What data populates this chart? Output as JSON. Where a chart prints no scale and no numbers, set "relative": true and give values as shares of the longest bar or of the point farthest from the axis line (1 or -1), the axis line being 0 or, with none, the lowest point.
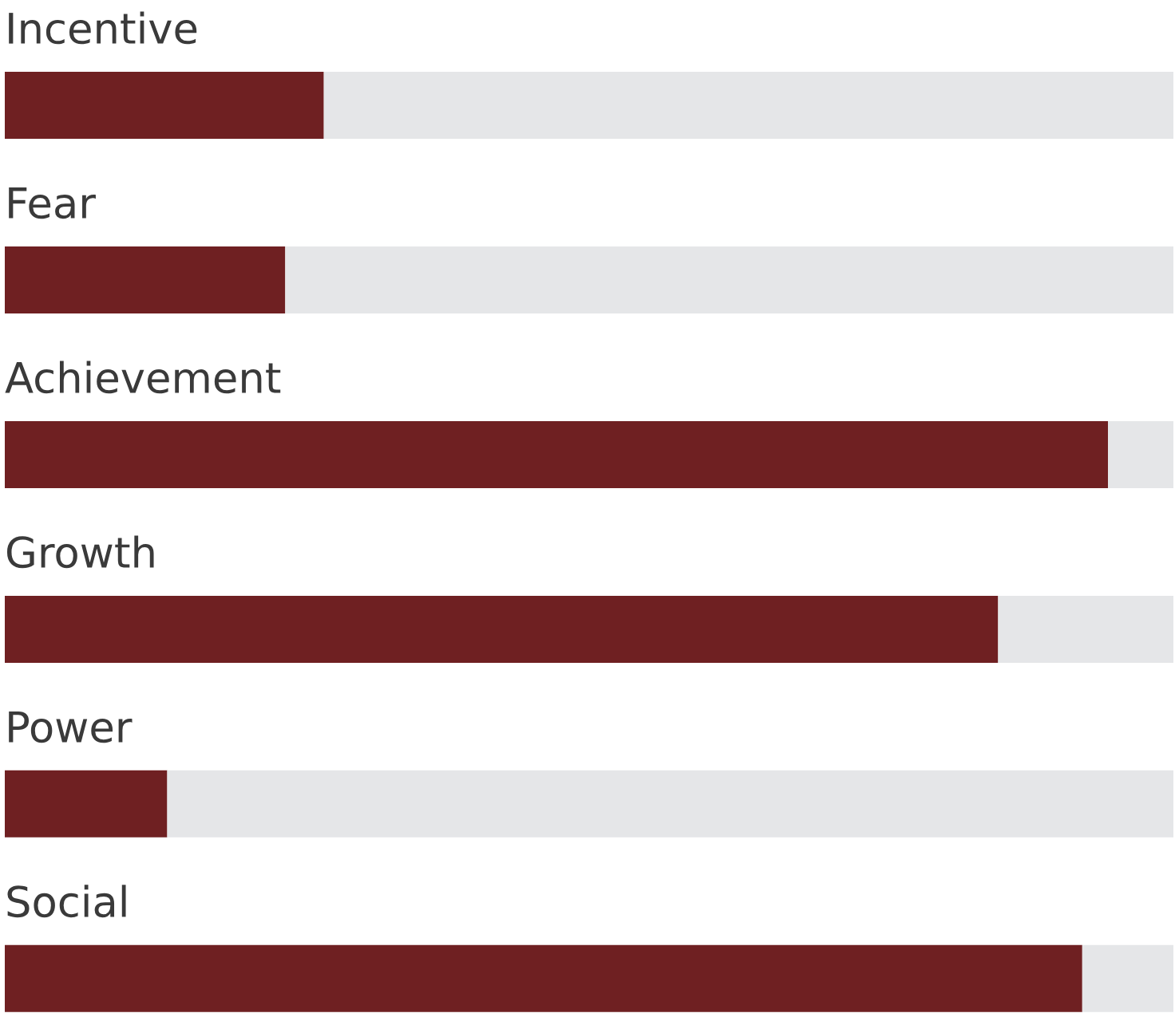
{
  "chart_data": {
    "type": "bar",
    "orientation": "horizontal",
    "stacked": true,
    "relative": true,
    "categories": [
      "Incentive",
      "Fear",
      "Achievement",
      "Growth",
      "Power",
      "Social"
    ],
    "series": [
      {
        "color": "#6f2022",
        "values": [
          0.273,
          0.24,
          0.944,
          0.85,
          0.139,
          0.922
        ]
      },
      {
        "color": "#e5e6e8",
        "values": [
          0.727,
          0.76,
          0.056,
          0.15,
          0.861,
          0.078
        ]
      }
    ]
  }
}
